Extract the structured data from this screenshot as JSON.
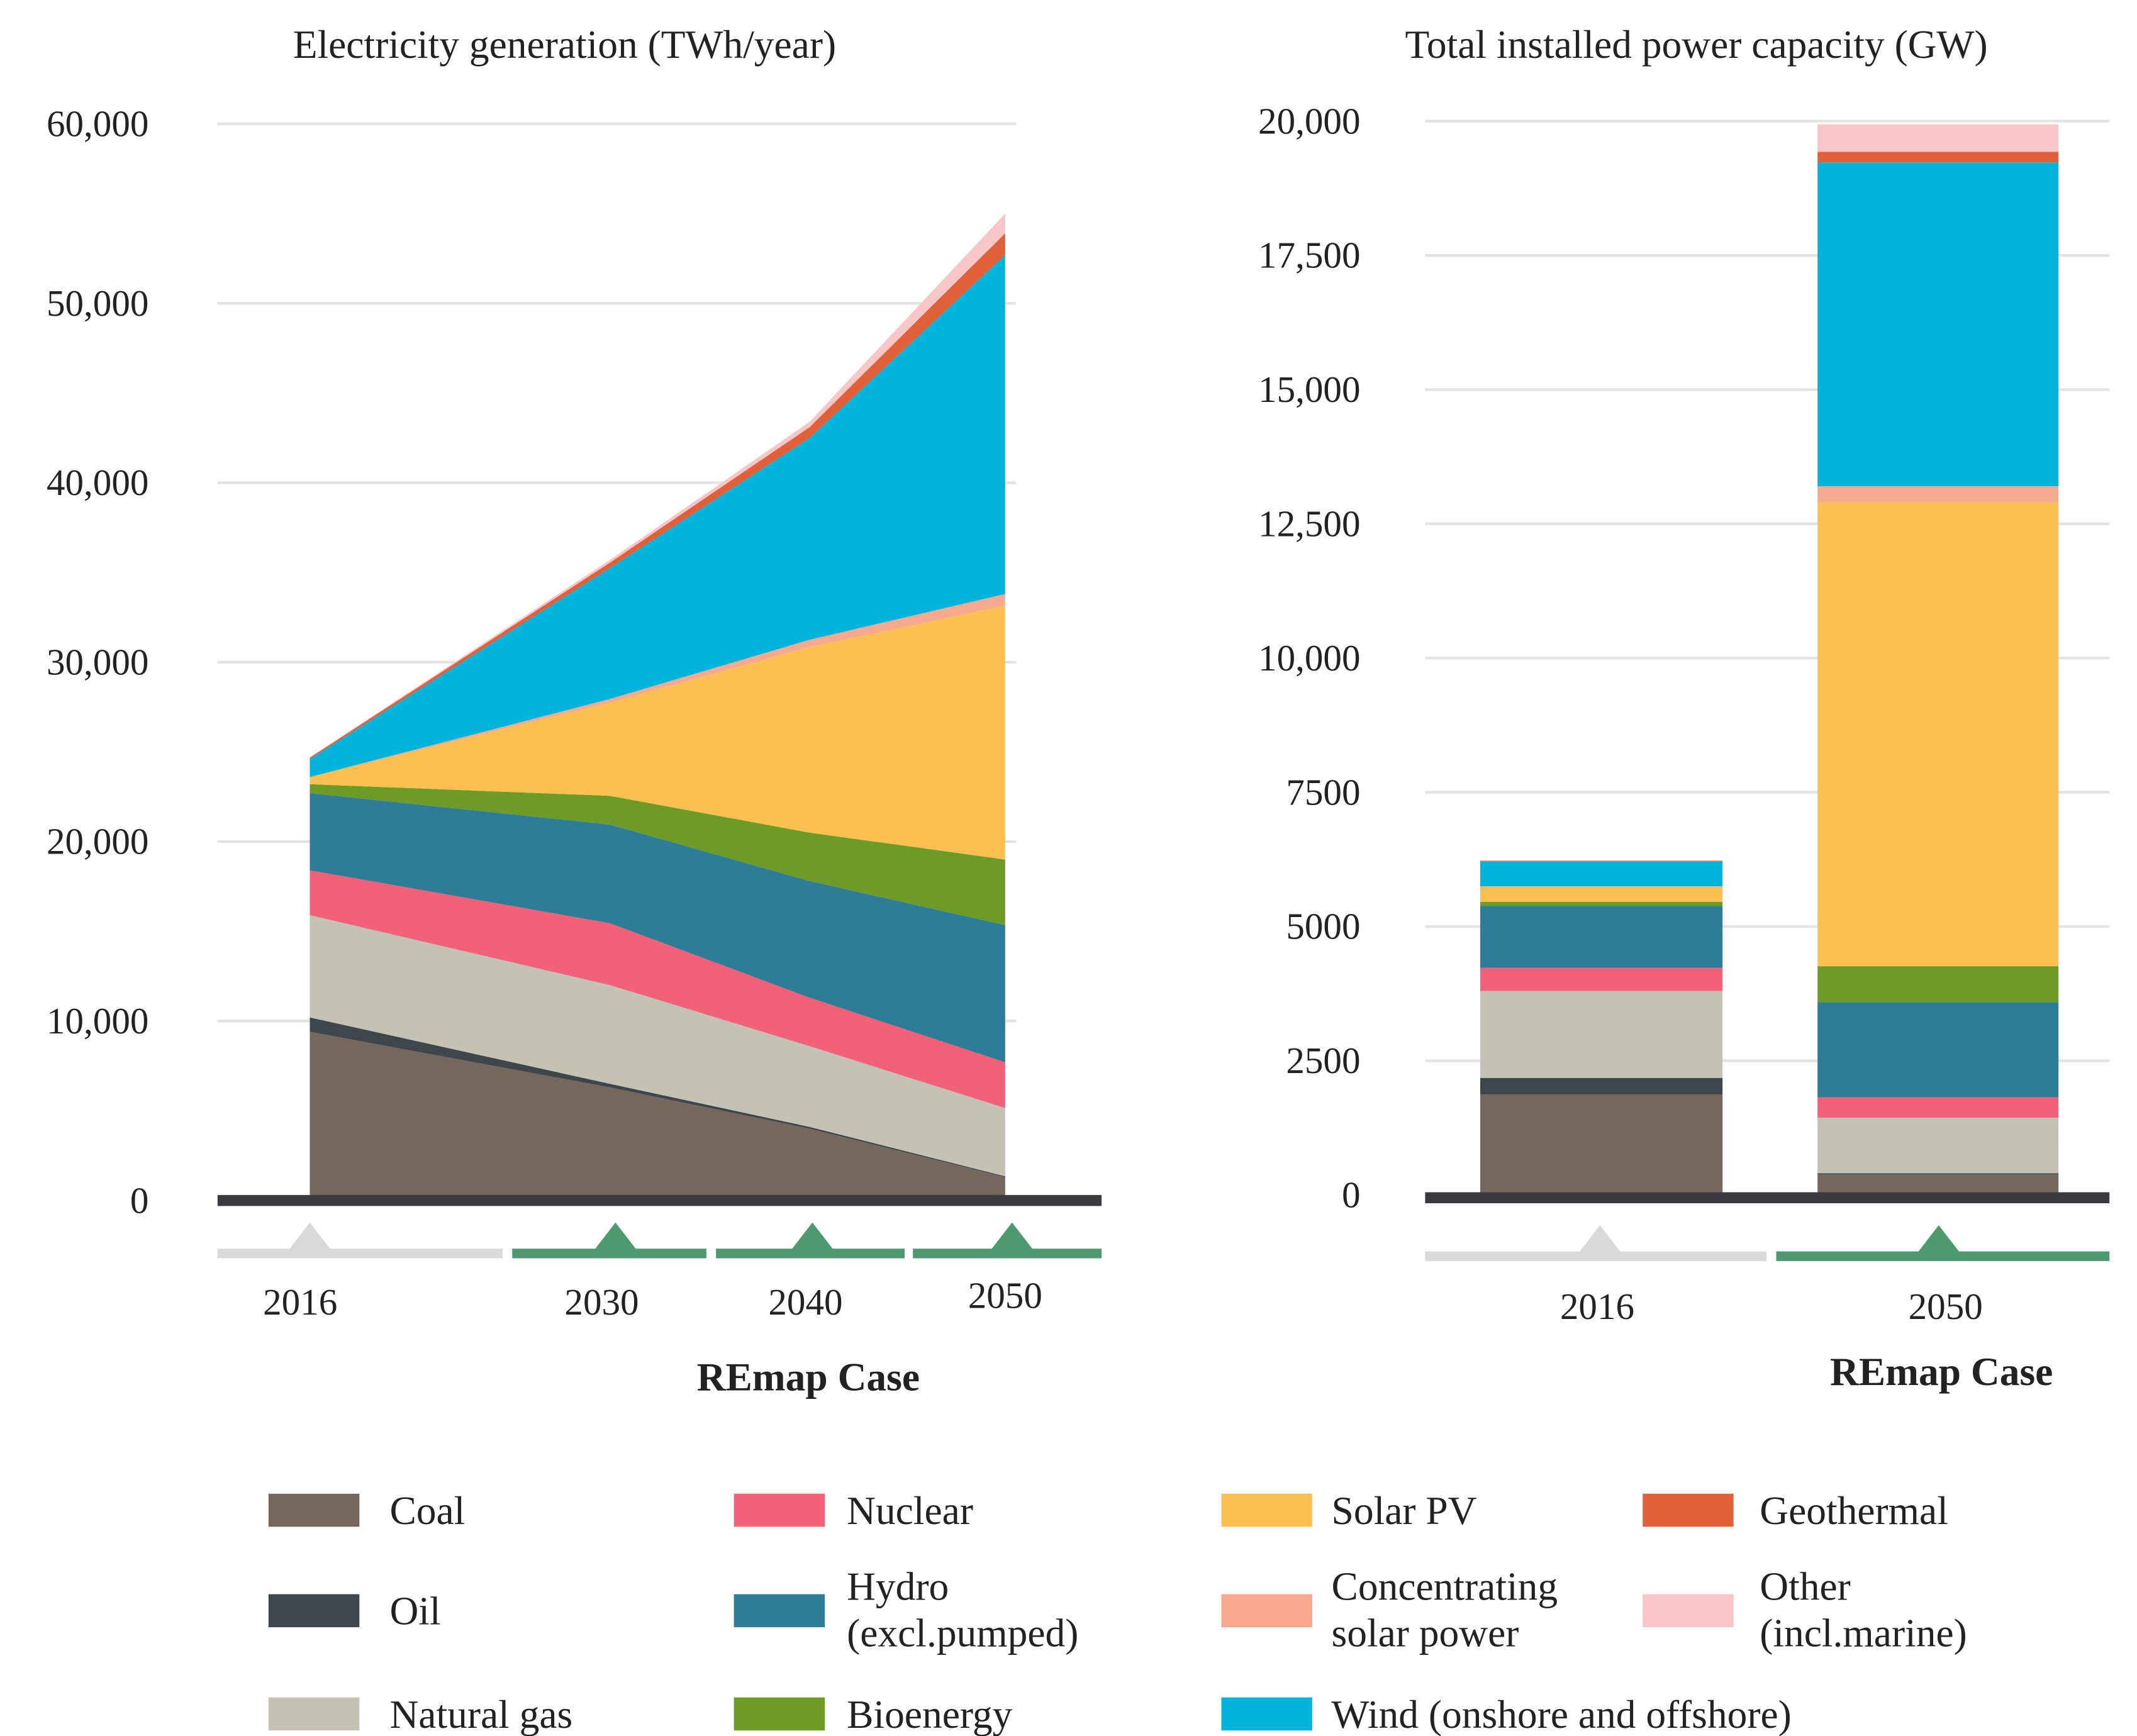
{
  "colors": {
    "Coal": "#74675d",
    "Oil": "#3f464b",
    "Natural gas": "#c4c3b3",
    "Nuclear": "#f2607a",
    "Hydro": "#2d7d98",
    "Bioenergy": "#6e9a26",
    "Solar PV": "#fcbf52",
    "CSP": "#f7a98d",
    "Wind": "#00b4dc",
    "Geothermal": "#e0603a",
    "Other": "#f9c6c8",
    "grid": "#e3e3e3",
    "baseline": "#3a3a3f",
    "timeline_base": "#d9d9d9",
    "timeline_remap": "#4d9a6e"
  },
  "chart_data": [
    {
      "type": "area",
      "stacked": true,
      "title": "Electricity generation (TWh/year)",
      "x": [
        "2016",
        "2030",
        "2040",
        "2050"
      ],
      "xlabel": "REmap Case",
      "ylim": [
        0,
        60000
      ],
      "yticks": [
        "0",
        "10,000",
        "20,000",
        "30,000",
        "40,000",
        "50,000",
        "60,000"
      ],
      "grid": true,
      "series": [
        {
          "name": "Coal",
          "values": [
            9400,
            6300,
            4000,
            1300
          ]
        },
        {
          "name": "Oil",
          "values": [
            800,
            200,
            100,
            50
          ]
        },
        {
          "name": "Natural gas",
          "values": [
            5700,
            5500,
            4500,
            3800
          ]
        },
        {
          "name": "Nuclear",
          "values": [
            2500,
            3450,
            2700,
            2550
          ]
        },
        {
          "name": "Hydro",
          "values": [
            4300,
            5500,
            6500,
            7650
          ]
        },
        {
          "name": "Bioenergy",
          "values": [
            500,
            1600,
            2700,
            3650
          ]
        },
        {
          "name": "Solar PV",
          "values": [
            400,
            5200,
            10350,
            14150
          ]
        },
        {
          "name": "CSP",
          "values": [
            0,
            200,
            400,
            650
          ]
        },
        {
          "name": "Wind",
          "values": [
            1000,
            7300,
            11250,
            18900
          ]
        },
        {
          "name": "Geothermal",
          "values": [
            80,
            300,
            600,
            1200
          ]
        },
        {
          "name": "Other",
          "values": [
            20,
            150,
            300,
            1100
          ]
        }
      ]
    },
    {
      "type": "bar",
      "stacked": true,
      "title": "Total installed power capacity (GW)",
      "categories": [
        "2016",
        "2050"
      ],
      "xlabel": "REmap Case",
      "ylim": [
        0,
        20000
      ],
      "yticks": [
        "0",
        "2500",
        "5000",
        "7500",
        "10,000",
        "12,500",
        "15,000",
        "17,500",
        "20,000"
      ],
      "grid": true,
      "series": [
        {
          "name": "Coal",
          "values": [
            1870,
            385
          ]
        },
        {
          "name": "Oil",
          "values": [
            310,
            20
          ]
        },
        {
          "name": "Natural gas",
          "values": [
            1620,
            1035
          ]
        },
        {
          "name": "Nuclear",
          "values": [
            430,
            380
          ]
        },
        {
          "name": "Hydro",
          "values": [
            1150,
            1770
          ]
        },
        {
          "name": "Bioenergy",
          "values": [
            80,
            670
          ]
        },
        {
          "name": "Solar PV",
          "values": [
            280,
            8640
          ]
        },
        {
          "name": "CSP",
          "values": [
            10,
            300
          ]
        },
        {
          "name": "Wind",
          "values": [
            460,
            6030
          ]
        },
        {
          "name": "Geothermal",
          "values": [
            15,
            200
          ]
        },
        {
          "name": "Other",
          "values": [
            5,
            510
          ]
        }
      ]
    }
  ],
  "legend": [
    {
      "key": "Coal",
      "lines": [
        "Coal"
      ]
    },
    {
      "key": "Oil",
      "lines": [
        "Oil"
      ]
    },
    {
      "key": "Natural gas",
      "lines": [
        "Natural gas"
      ]
    },
    {
      "key": "Nuclear",
      "lines": [
        "Nuclear"
      ]
    },
    {
      "key": "Hydro",
      "lines": [
        "Hydro",
        "(excl.pumped)"
      ]
    },
    {
      "key": "Bioenergy",
      "lines": [
        "Bioenergy"
      ]
    },
    {
      "key": "Solar PV",
      "lines": [
        "Solar PV"
      ]
    },
    {
      "key": "CSP",
      "lines": [
        "Concentrating",
        "solar power"
      ]
    },
    {
      "key": "Wind",
      "lines": [
        "Wind (onshore and offshore)"
      ]
    },
    {
      "key": "Geothermal",
      "lines": [
        "Geothermal"
      ]
    },
    {
      "key": "Other",
      "lines": [
        "Other",
        "(incl.marine)"
      ]
    }
  ]
}
